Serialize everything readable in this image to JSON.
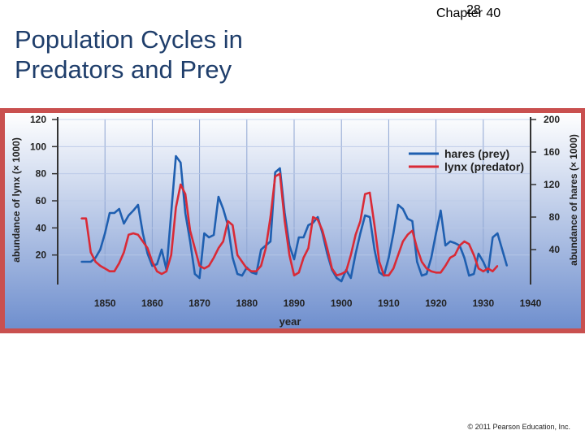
{
  "slide": {
    "title": "Population Cycles in Predators and Prey",
    "chapter": "Chapter 40",
    "slide_number": "28",
    "copyright": "© 2011 Pearson Education, Inc."
  },
  "colors": {
    "frame": "#c9504f",
    "hares": "#1f5fb0",
    "lynx": "#d92a36",
    "bg_top": "#ffffff",
    "bg_bottom": "#6f8fce"
  },
  "chart_data": {
    "type": "line",
    "title": "",
    "xlabel": "year",
    "ylabel": "abundance of lynx (× 1000)",
    "y2label": "abundance of hares (× 1000)",
    "xlim": [
      1840,
      1940
    ],
    "ylim": [
      0,
      120
    ],
    "y2lim": [
      0,
      200
    ],
    "xticks": [
      1850,
      1860,
      1870,
      1880,
      1890,
      1900,
      1910,
      1920,
      1930,
      1940
    ],
    "yticks": [
      20,
      40,
      60,
      80,
      100,
      120
    ],
    "y2ticks": [
      40,
      80,
      120,
      160,
      200
    ],
    "legend": {
      "position": "top-right",
      "entries": [
        "hares (prey)",
        "lynx (predator)"
      ]
    },
    "series": [
      {
        "name": "hares (prey)",
        "axis": "right",
        "x": [
          1845,
          1847,
          1848,
          1849,
          1850,
          1851,
          1852,
          1853,
          1854,
          1855,
          1856,
          1857,
          1858,
          1859,
          1860,
          1861,
          1862,
          1863,
          1864,
          1865,
          1866,
          1867,
          1868,
          1869,
          1870,
          1871,
          1872,
          1873,
          1874,
          1875,
          1876,
          1877,
          1878,
          1879,
          1880,
          1881,
          1882,
          1883,
          1884,
          1885,
          1886,
          1887,
          1888,
          1889,
          1890,
          1891,
          1892,
          1893,
          1894,
          1895,
          1896,
          1897,
          1898,
          1899,
          1900,
          1901,
          1902,
          1903,
          1904,
          1905,
          1906,
          1907,
          1908,
          1909,
          1910,
          1911,
          1912,
          1913,
          1914,
          1915,
          1916,
          1917,
          1918,
          1919,
          1920,
          1921,
          1922,
          1923,
          1924,
          1925,
          1926,
          1927,
          1928,
          1929,
          1930,
          1931,
          1932,
          1933,
          1934,
          1935
        ],
        "values": [
          25,
          25,
          30,
          40,
          60,
          85,
          85,
          90,
          72,
          82,
          88,
          95,
          60,
          35,
          20,
          22,
          40,
          15,
          85,
          155,
          147,
          85,
          50,
          10,
          5,
          60,
          55,
          58,
          105,
          90,
          70,
          30,
          10,
          8,
          18,
          12,
          10,
          40,
          45,
          50,
          135,
          140,
          85,
          45,
          28,
          55,
          55,
          70,
          73,
          80,
          60,
          35,
          15,
          5,
          1,
          15,
          5,
          35,
          60,
          82,
          80,
          40,
          12,
          8,
          30,
          60,
          95,
          90,
          78,
          75,
          25,
          8,
          10,
          30,
          60,
          88,
          45,
          50,
          48,
          45,
          30,
          8,
          10,
          35,
          25,
          12,
          55,
          60,
          40,
          20
        ]
      },
      {
        "name": "lynx (predator)",
        "axis": "left",
        "x": [
          1845,
          1846,
          1847,
          1848,
          1849,
          1850,
          1851,
          1852,
          1853,
          1854,
          1855,
          1856,
          1857,
          1858,
          1859,
          1860,
          1861,
          1862,
          1863,
          1864,
          1865,
          1866,
          1867,
          1868,
          1869,
          1870,
          1871,
          1872,
          1873,
          1874,
          1875,
          1876,
          1877,
          1878,
          1879,
          1880,
          1881,
          1882,
          1883,
          1884,
          1885,
          1886,
          1887,
          1888,
          1889,
          1890,
          1891,
          1892,
          1893,
          1894,
          1895,
          1896,
          1897,
          1898,
          1899,
          1900,
          1901,
          1902,
          1903,
          1904,
          1905,
          1906,
          1907,
          1908,
          1909,
          1910,
          1911,
          1912,
          1913,
          1914,
          1915,
          1916,
          1917,
          1918,
          1919,
          1920,
          1921,
          1922,
          1923,
          1924,
          1925,
          1926,
          1927,
          1928,
          1929,
          1930,
          1931,
          1932,
          1933
        ],
        "values": [
          47,
          47,
          22,
          15,
          12,
          10,
          8,
          8,
          14,
          22,
          35,
          36,
          35,
          30,
          25,
          15,
          8,
          6,
          8,
          20,
          55,
          72,
          65,
          38,
          25,
          12,
          10,
          12,
          18,
          25,
          30,
          45,
          42,
          20,
          15,
          10,
          8,
          8,
          12,
          25,
          48,
          78,
          80,
          45,
          20,
          5,
          7,
          18,
          25,
          48,
          46,
          38,
          25,
          10,
          5,
          6,
          8,
          20,
          35,
          45,
          65,
          66,
          42,
          15,
          5,
          5,
          10,
          20,
          30,
          35,
          38,
          25,
          15,
          10,
          8,
          7,
          7,
          12,
          18,
          20,
          27,
          30,
          28,
          20,
          10,
          8,
          10,
          8,
          12
        ]
      }
    ]
  }
}
